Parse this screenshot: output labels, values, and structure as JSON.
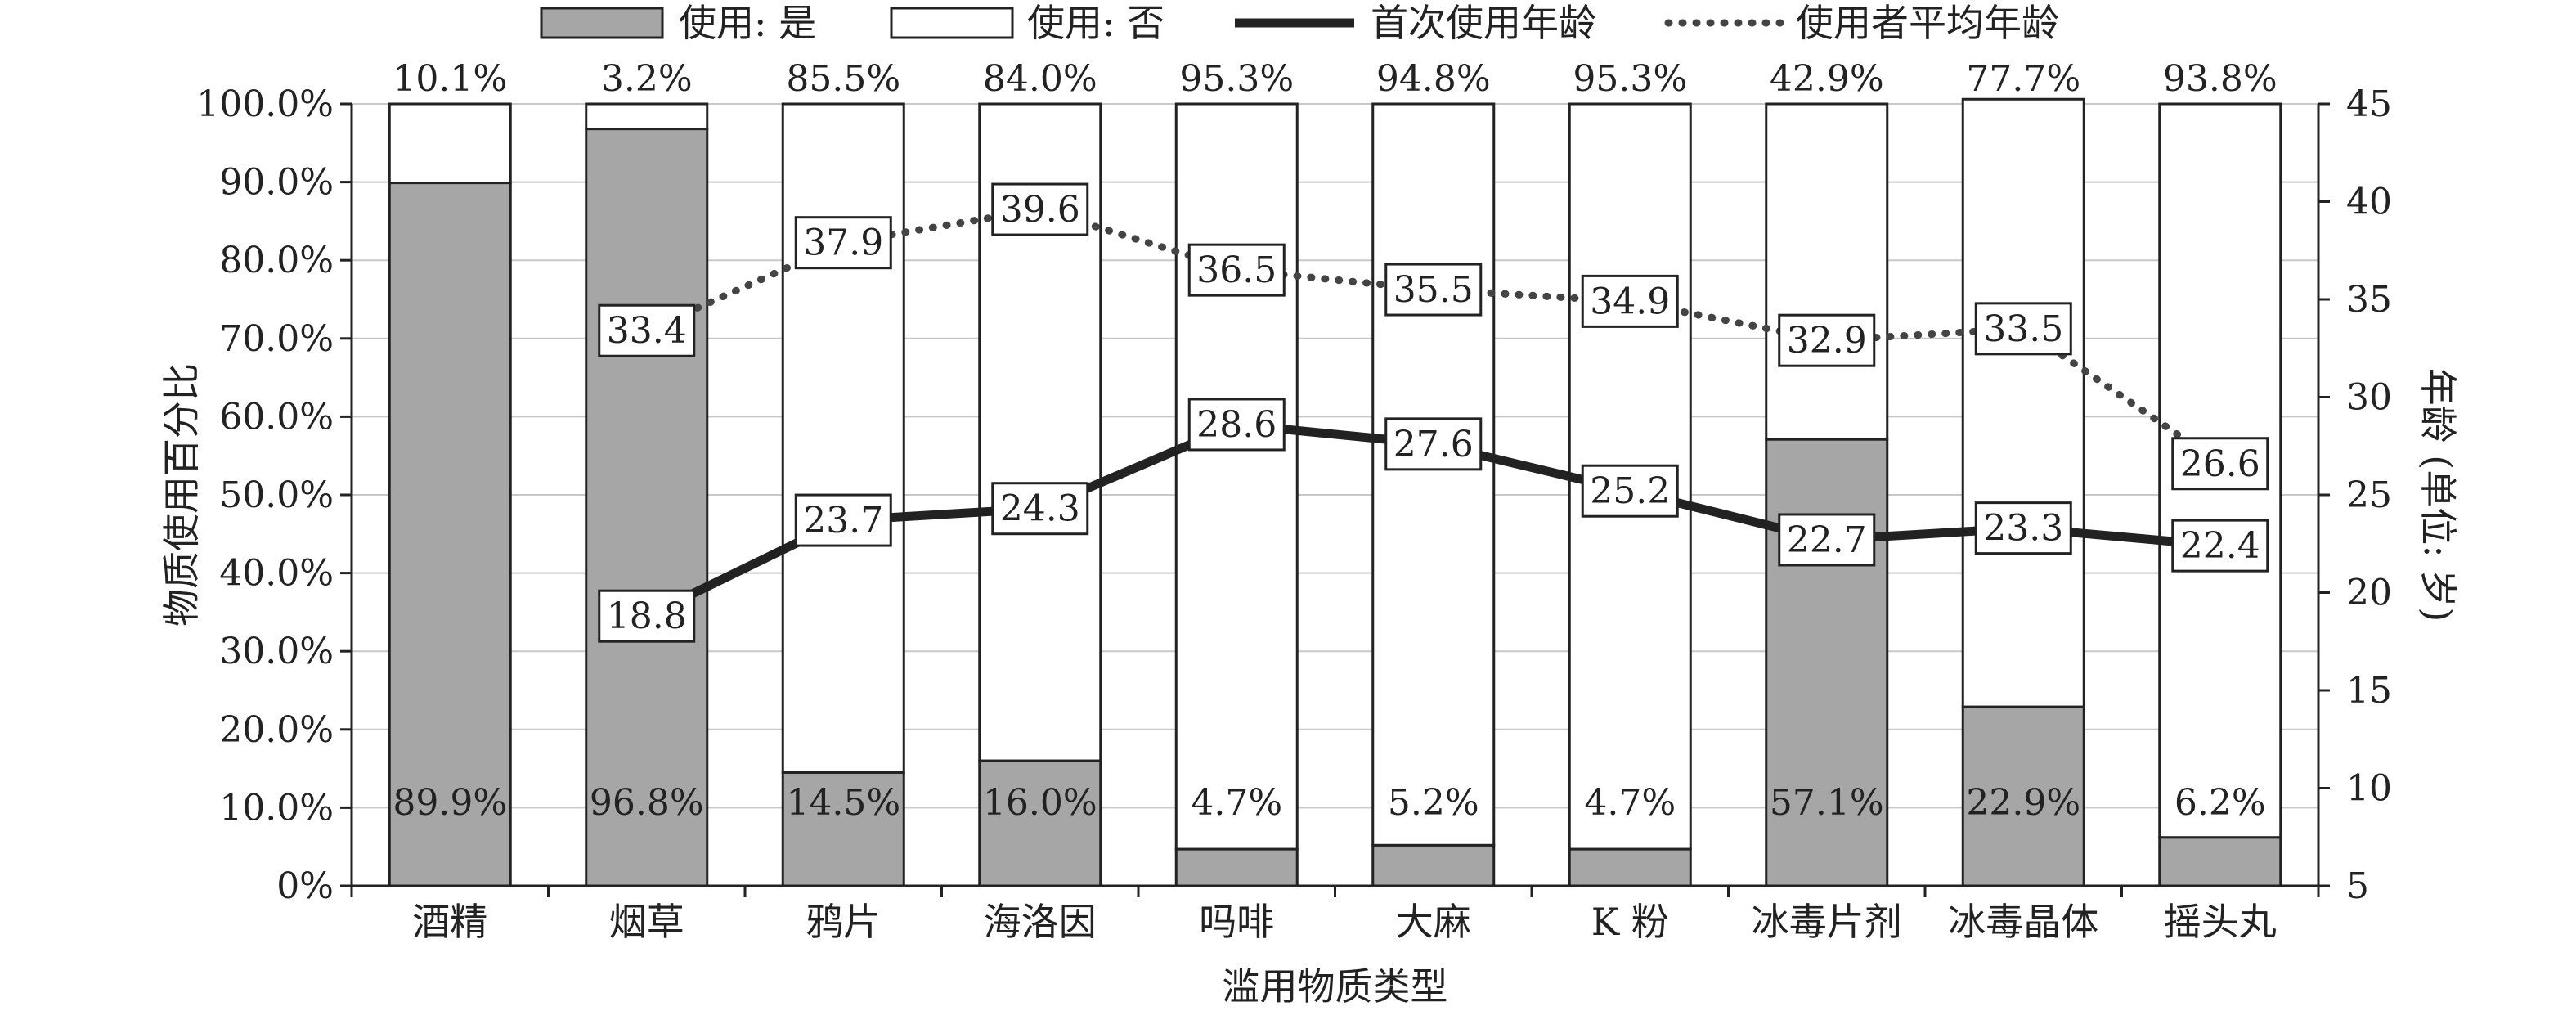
{
  "chart_data": {
    "type": "bar",
    "stacked": true,
    "categories": [
      "酒精",
      "烟草",
      "鸦片",
      "海洛因",
      "吗啡",
      "大麻",
      "K 粉",
      "冰毒片剂",
      "冰毒晶体",
      "摇头丸"
    ],
    "series": [
      {
        "name": "使用: 是",
        "values": [
          89.9,
          96.8,
          14.5,
          16.0,
          4.7,
          5.2,
          4.7,
          57.1,
          22.9,
          6.2
        ],
        "labels": [
          "89.9%",
          "96.8%",
          "14.5%",
          "16.0%",
          "4.7%",
          "5.2%",
          "4.7%",
          "57.1%",
          "22.9%",
          "6.2%"
        ],
        "color": "#a6a6a6"
      },
      {
        "name": "使用: 否",
        "values": [
          10.1,
          3.2,
          85.5,
          84.0,
          95.3,
          94.8,
          95.3,
          42.9,
          77.7,
          93.8
        ],
        "labels": [
          "10.1%",
          "3.2%",
          "85.5%",
          "84.0%",
          "95.3%",
          "94.8%",
          "95.3%",
          "42.9%",
          "77.7%",
          "93.8%"
        ],
        "color": "#ffffff"
      }
    ],
    "lines": [
      {
        "name": "首次使用年龄",
        "style": "solid",
        "axis": "right",
        "values": [
          null,
          18.8,
          23.7,
          24.3,
          28.6,
          27.6,
          25.2,
          22.7,
          23.3,
          22.4
        ],
        "labels": [
          "",
          "18.8",
          "23.7",
          "24.3",
          "28.6",
          "27.6",
          "25.2",
          "22.7",
          "23.3",
          "22.4"
        ],
        "color": "#222222"
      },
      {
        "name": "使用者平均年龄",
        "style": "dotted",
        "axis": "right",
        "values": [
          null,
          33.4,
          37.9,
          39.6,
          36.5,
          35.5,
          34.9,
          32.9,
          33.5,
          26.6
        ],
        "labels": [
          "",
          "33.4",
          "37.9",
          "39.6",
          "36.5",
          "35.5",
          "34.9",
          "32.9",
          "33.5",
          "26.6"
        ],
        "color": "#444444"
      }
    ],
    "xlabel": "滥用物质类型",
    "ylabel": "物质使用百分比",
    "y2label": "年龄 (单位: 岁)",
    "ylim": [
      0,
      100
    ],
    "y2lim": [
      5,
      45
    ],
    "yticks": [
      "0%",
      "10.0%",
      "20.0%",
      "30.0%",
      "40.0%",
      "50.0%",
      "60.0%",
      "70.0%",
      "80.0%",
      "90.0%",
      "100.0%"
    ],
    "y2ticks": [
      "5",
      "10",
      "15",
      "20",
      "25",
      "30",
      "35",
      "40",
      "45"
    ],
    "grid": true,
    "legend": "top"
  }
}
